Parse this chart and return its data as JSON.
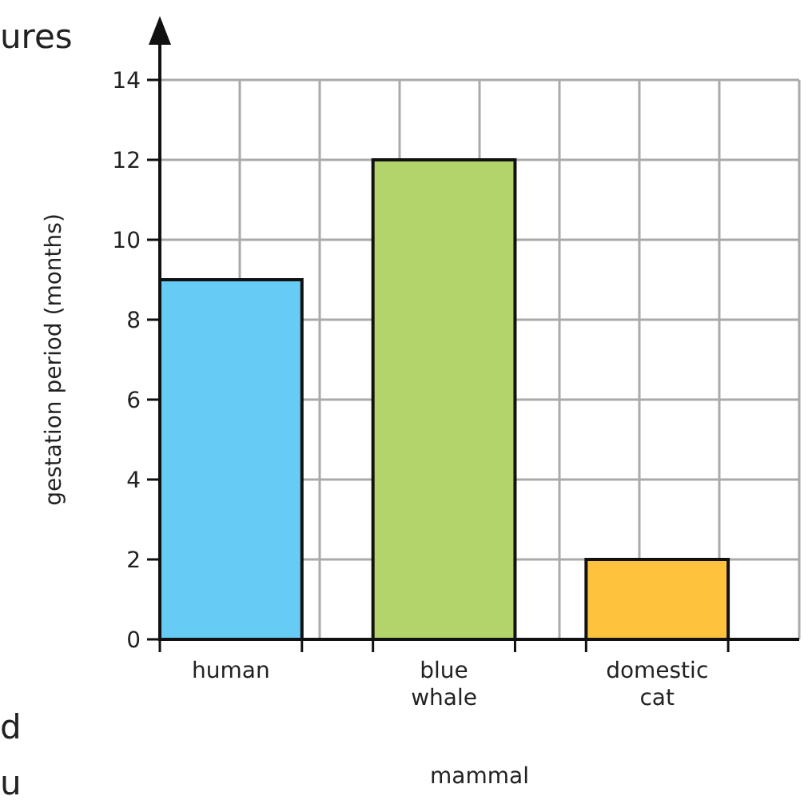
{
  "chart_data": {
    "type": "bar",
    "categories": [
      "human",
      "blue whale",
      "domestic cat"
    ],
    "values": [
      9,
      12,
      2
    ],
    "colors": [
      "#66ccf5",
      "#b3d46a",
      "#fec23c"
    ],
    "ylim": [
      0,
      14
    ],
    "yticks": [
      0,
      2,
      4,
      6,
      8,
      10,
      12,
      14
    ],
    "grid": true,
    "xlabel": "mammal",
    "ylabel": "gestation period (months)",
    "annotations": [
      "ures",
      "d",
      "u"
    ]
  }
}
